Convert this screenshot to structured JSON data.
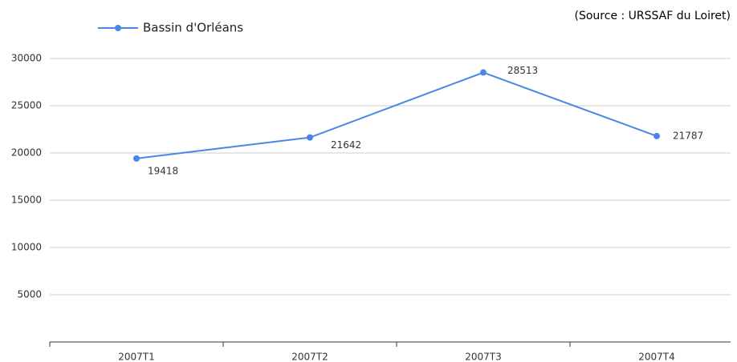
{
  "chart_data": {
    "type": "line",
    "subtitle": "(Source : URSSAF du Loiret)",
    "categories": [
      "2007T1",
      "2007T2",
      "2007T3",
      "2007T4"
    ],
    "series": [
      {
        "name": "Bassin d'Orléans",
        "color": "#4a86e8",
        "values": [
          19418,
          21642,
          28513,
          21787
        ]
      }
    ],
    "ylim": [
      0,
      30000
    ],
    "yticks": [
      5000,
      10000,
      15000,
      20000,
      25000,
      30000
    ],
    "grid": true,
    "legend": "top-left"
  }
}
